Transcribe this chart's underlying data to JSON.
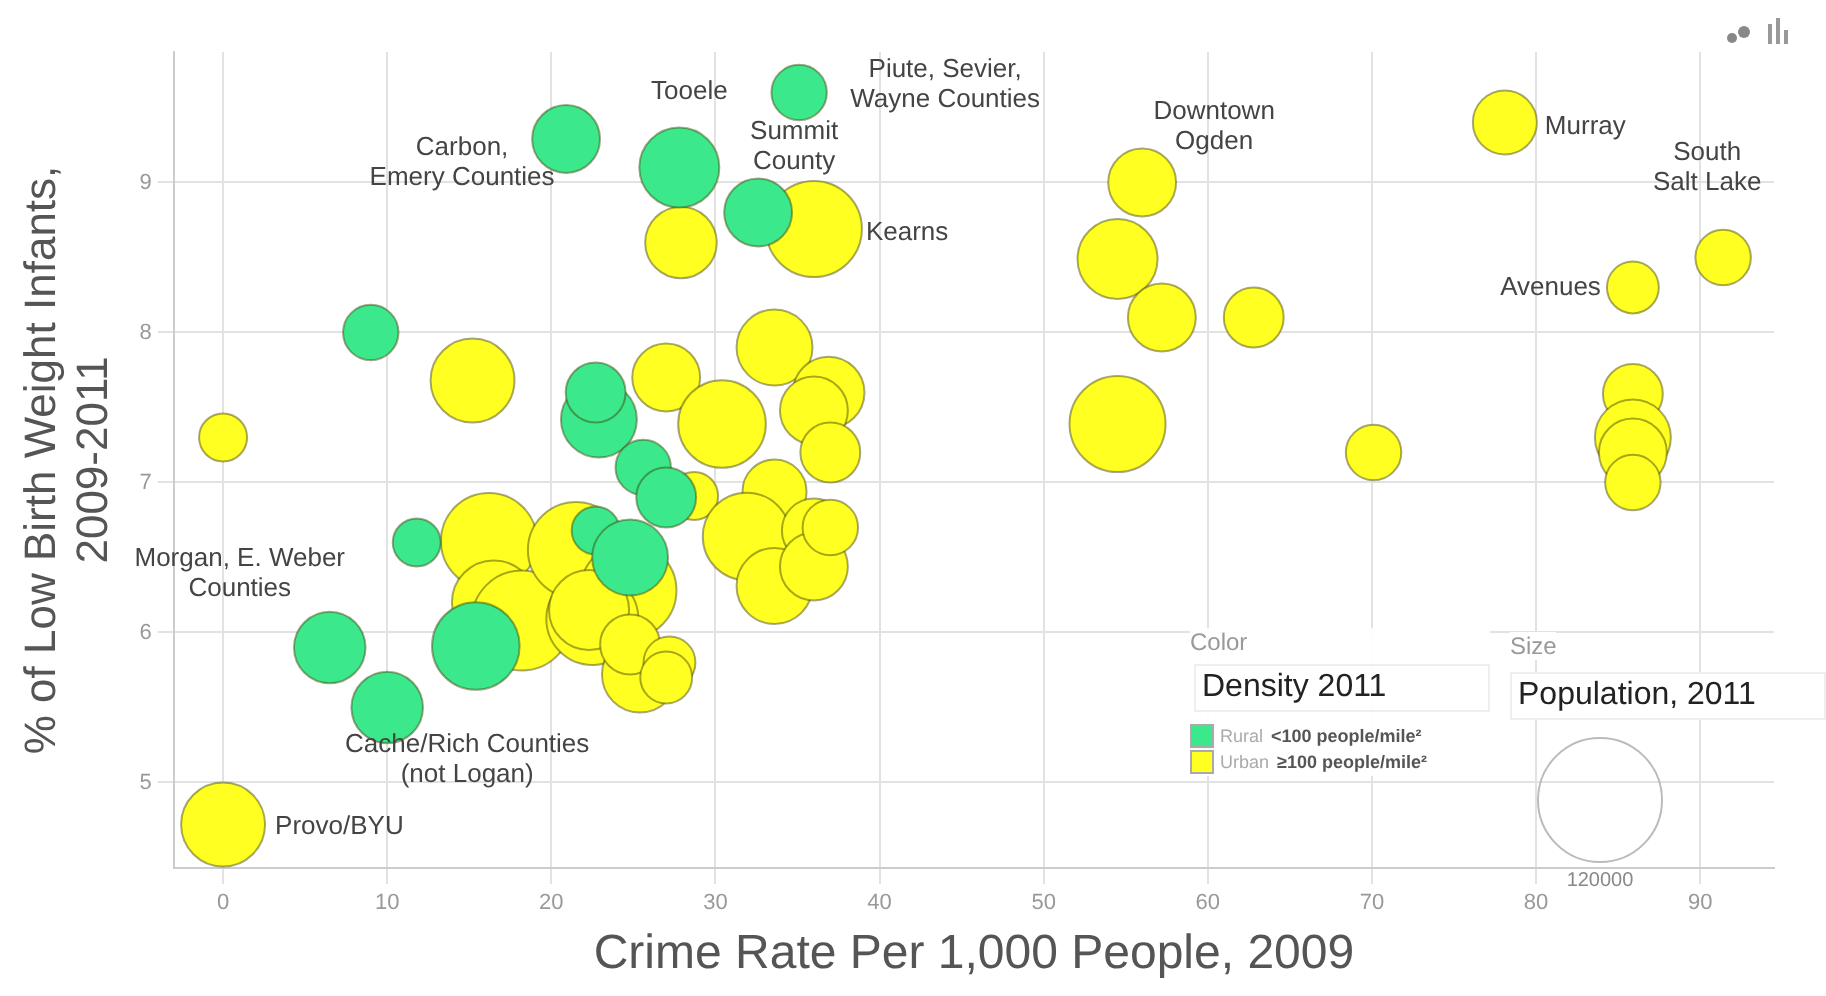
{
  "chart_data": {
    "type": "bubble",
    "xlabel": "Crime Rate Per 1,000 People, 2009",
    "ylabel": "% of Low Birth Weight Infants,\n2009-2011",
    "legend_title": "Density 2011",
    "xlim": [
      -3,
      94.5
    ],
    "xticks": [
      0,
      10,
      20,
      30,
      40,
      50,
      60,
      70,
      80,
      90
    ],
    "ylim": [
      4.43,
      9.87
    ],
    "yticks": [
      5,
      6,
      7,
      8,
      9
    ],
    "grid": true,
    "legend": "bottom right",
    "size_legend": [
      {
        "value": 120000,
        "label": "120000"
      }
    ],
    "series": [
      {
        "name": "Rural <100 people/mile²",
        "color": "#3be88c",
        "x": [
          20.9,
          27.8,
          32.6,
          35.1,
          9.0,
          22.9,
          22.7,
          25.6,
          11.8,
          27.0,
          22.7,
          24.8,
          6.5,
          10.0,
          15.4
        ],
        "values": [
          9.29,
          9.1,
          8.8,
          9.6,
          8.0,
          7.42,
          7.6,
          7.1,
          6.6,
          6.9,
          6.68,
          6.5,
          5.9,
          5.5,
          5.91
        ],
        "sizes": [
          36000,
          50000,
          36000,
          24000,
          24000,
          45000,
          28000,
          24000,
          18000,
          28000,
          18000,
          45000,
          40000,
          40000,
          60000
        ]
      },
      {
        "name": "Urban ≥100 people/mile²",
        "color": "#ffff22",
        "x": [
          0,
          0,
          15.2,
          27.0,
          27.9,
          36.0,
          33.6,
          30.4,
          36.9,
          36.0,
          37.0,
          28.7,
          33.6,
          31.9,
          33.6,
          36.0,
          36.0,
          37.0,
          16.2,
          16.5,
          18.2,
          21.5,
          24.7,
          22.5,
          22.3,
          25.4,
          24.8,
          27.2,
          27.0,
          56.0,
          54.5,
          57.2,
          62.8,
          54.5,
          70.1,
          78.1,
          85.9,
          91.4,
          85.9,
          85.9,
          85.9,
          85.9
        ],
        "values": [
          4.72,
          7.3,
          7.68,
          7.7,
          8.6,
          8.69,
          7.9,
          7.39,
          7.6,
          7.48,
          7.2,
          6.91,
          6.94,
          6.64,
          6.31,
          6.68,
          6.44,
          6.7,
          6.61,
          6.2,
          6.08,
          6.55,
          6.28,
          6.09,
          6.15,
          5.72,
          5.92,
          5.8,
          5.7,
          9.0,
          8.49,
          8.1,
          8.1,
          7.39,
          7.2,
          9.4,
          8.3,
          8.5,
          7.59,
          7.3,
          7.2,
          7.0
        ],
        "sizes": [
          55000,
          18000,
          55000,
          36000,
          40000,
          72000,
          45000,
          60000,
          40000,
          36000,
          28000,
          18000,
          32000,
          60000,
          45000,
          32000,
          36000,
          24000,
          72000,
          55000,
          78000,
          72000,
          72000,
          66000,
          50000,
          45000,
          28000,
          21000,
          21000,
          36000,
          50000,
          36000,
          28000,
          72000,
          24000,
          32000,
          21000,
          24000,
          28000,
          45000,
          36000,
          24000
        ]
      }
    ],
    "annotations": [
      {
        "text": "Tooele",
        "x": 27.8,
        "y": 9.1
      },
      {
        "text": "Carbon,\nEmery Counties",
        "x": 20.9,
        "y": 9.29
      },
      {
        "text": "Summit\nCounty",
        "x": 32.6,
        "y": 8.8
      },
      {
        "text": "Piute, Sevier,\nWayne Counties",
        "x": 35.1,
        "y": 9.6
      },
      {
        "text": "Kearns",
        "x": 36.0,
        "y": 8.69
      },
      {
        "text": "Downtown\nOgden",
        "x": 56.0,
        "y": 9.0
      },
      {
        "text": "Murray",
        "x": 78.1,
        "y": 9.4
      },
      {
        "text": "South\nSalt Lake",
        "x": 91.4,
        "y": 8.5
      },
      {
        "text": "Avenues",
        "x": 85.9,
        "y": 8.3
      },
      {
        "text": "Morgan, E. Weber\nCounties",
        "x": 6.5,
        "y": 5.9
      },
      {
        "text": "Cache/Rich Counties\n(not Logan)",
        "x": 10.0,
        "y": 5.5
      },
      {
        "text": "Provo/BYU",
        "x": 0,
        "y": 4.72
      },
      "Color",
      "Size",
      "Population, 2011"
    ]
  }
}
